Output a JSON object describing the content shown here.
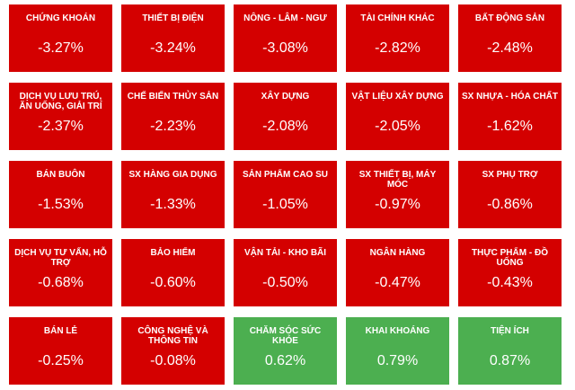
{
  "tiles": [
    {
      "name": "CHỨNG KHOÁN",
      "change": "-3.27%",
      "color": "#d40000"
    },
    {
      "name": "THIẾT BỊ ĐIỆN",
      "change": "-3.24%",
      "color": "#d40000"
    },
    {
      "name": "NÔNG - LÂM - NGƯ",
      "change": "-3.08%",
      "color": "#d40000"
    },
    {
      "name": "TÀI CHÍNH KHÁC",
      "change": "-2.82%",
      "color": "#d40000"
    },
    {
      "name": "BẤT ĐỘNG SẢN",
      "change": "-2.48%",
      "color": "#d40000"
    },
    {
      "name": "DỊCH VỤ LƯU TRÚ, ĂN UỐNG, GIẢI TRÍ",
      "change": "-2.37%",
      "color": "#d40000"
    },
    {
      "name": "CHẾ BIẾN THỦY SẢN",
      "change": "-2.23%",
      "color": "#d40000"
    },
    {
      "name": "XÂY DỰNG",
      "change": "-2.08%",
      "color": "#d40000"
    },
    {
      "name": "VẬT LIỆU XÂY DỰNG",
      "change": "-2.05%",
      "color": "#d40000"
    },
    {
      "name": "SX NHỰA - HÓA CHẤT",
      "change": "-1.62%",
      "color": "#d40000"
    },
    {
      "name": "BÁN BUÔN",
      "change": "-1.53%",
      "color": "#d40000"
    },
    {
      "name": "SX HÀNG GIA DỤNG",
      "change": "-1.33%",
      "color": "#d40000"
    },
    {
      "name": "SẢN PHẨM CAO SU",
      "change": "-1.05%",
      "color": "#d40000"
    },
    {
      "name": "SX THIẾT BỊ, MÁY MÓC",
      "change": "-0.97%",
      "color": "#d40000"
    },
    {
      "name": "SX PHỤ TRỢ",
      "change": "-0.86%",
      "color": "#d40000"
    },
    {
      "name": "DỊCH VỤ TƯ VẤN, HỖ TRỢ",
      "change": "-0.68%",
      "color": "#d40000"
    },
    {
      "name": "BẢO HIỂM",
      "change": "-0.60%",
      "color": "#d40000"
    },
    {
      "name": "VẬN TẢI - KHO BÃI",
      "change": "-0.50%",
      "color": "#d40000"
    },
    {
      "name": "NGÂN HÀNG",
      "change": "-0.47%",
      "color": "#d40000"
    },
    {
      "name": "THỰC PHẨM - ĐỒ UỐNG",
      "change": "-0.43%",
      "color": "#d40000"
    },
    {
      "name": "BÁN LẺ",
      "change": "-0.25%",
      "color": "#d40000"
    },
    {
      "name": "CÔNG NGHỆ VÀ THÔNG TIN",
      "change": "-0.08%",
      "color": "#d40000"
    },
    {
      "name": "CHĂM SÓC SỨC KHỎE",
      "change": "0.62%",
      "color": "#4caf50"
    },
    {
      "name": "KHAI KHOÁNG",
      "change": "0.79%",
      "color": "#4caf50"
    },
    {
      "name": "TIỆN ÍCH",
      "change": "0.87%",
      "color": "#4caf50"
    }
  ]
}
